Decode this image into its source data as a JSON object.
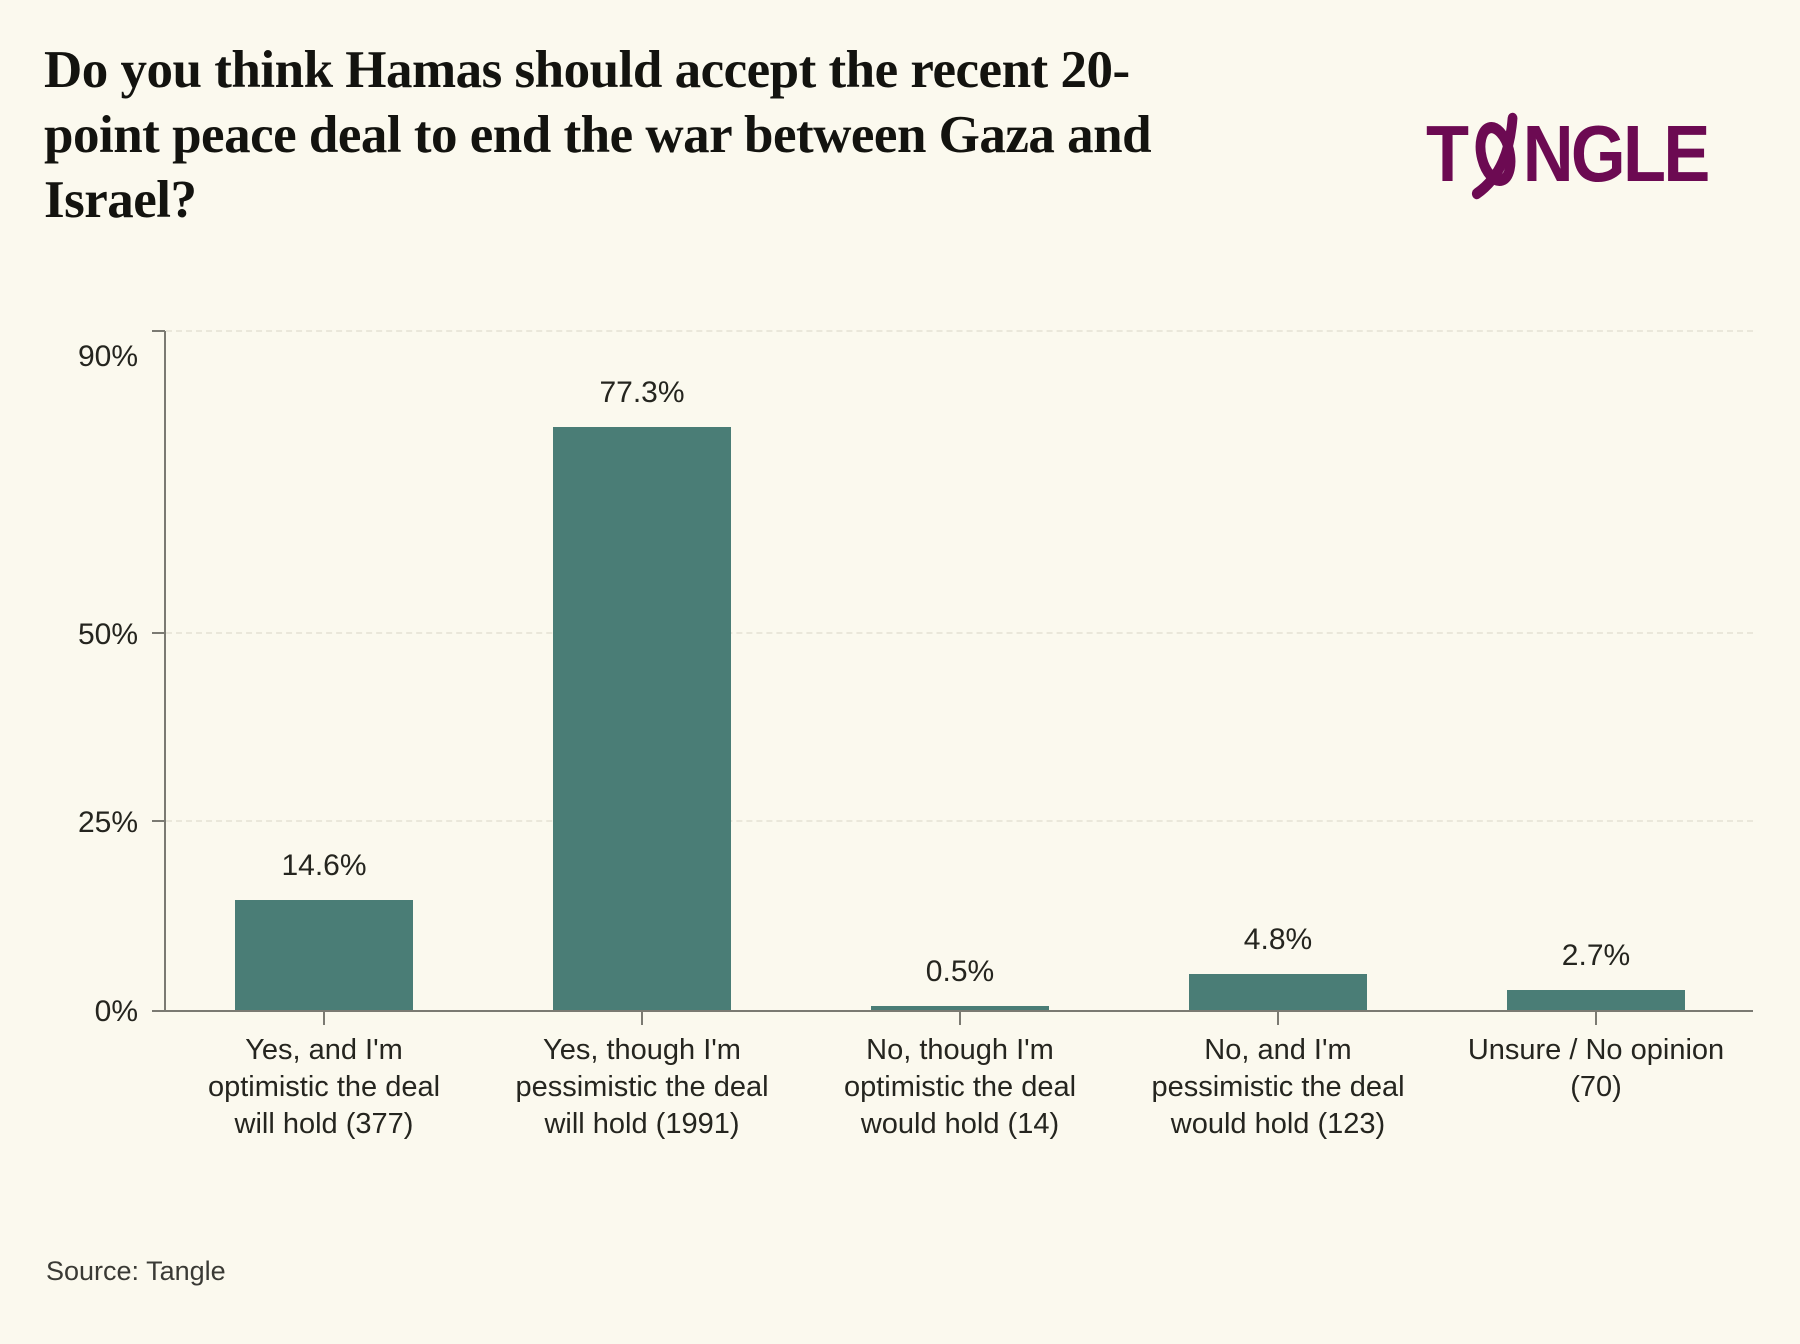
{
  "header": {
    "title_lines": [
      "Do you think Hamas should accept the recent 20-",
      "point peace deal to end the war between Gaza and",
      "Israel?"
    ],
    "logo": {
      "prefix": "T",
      "suffix": "NGLE",
      "full_name": "TANGLE",
      "color": "#6c0a52"
    }
  },
  "chart_data": {
    "type": "bar",
    "title": "Do you think Hamas should accept the recent 20-point peace deal to end the war between Gaza and Israel?",
    "categories": [
      [
        "Yes, and I'm",
        "optimistic the deal",
        "will hold (377)"
      ],
      [
        "Yes, though I'm",
        "pessimistic the deal",
        "will hold (1991)"
      ],
      [
        "No, though I'm",
        "optimistic the deal",
        "would hold (14)"
      ],
      [
        "No, and I'm",
        "pessimistic the deal",
        "would hold (123)"
      ],
      [
        "Unsure / No opinion",
        "(70)"
      ]
    ],
    "values": [
      14.6,
      77.3,
      0.5,
      4.8,
      2.7
    ],
    "counts": [
      377,
      1991,
      14,
      123,
      70
    ],
    "value_label_suffix": "%",
    "xlabel": "",
    "ylabel": "",
    "ylim": [
      0,
      90
    ],
    "yticks": [
      0,
      25,
      50,
      90
    ],
    "ytick_labels": [
      "0%",
      "25%",
      "50%",
      "90%"
    ],
    "grid": "horizontal-dashed",
    "legend": "none",
    "bar_color": "#4a7d76"
  },
  "footer": {
    "source": "Source: Tangle"
  }
}
